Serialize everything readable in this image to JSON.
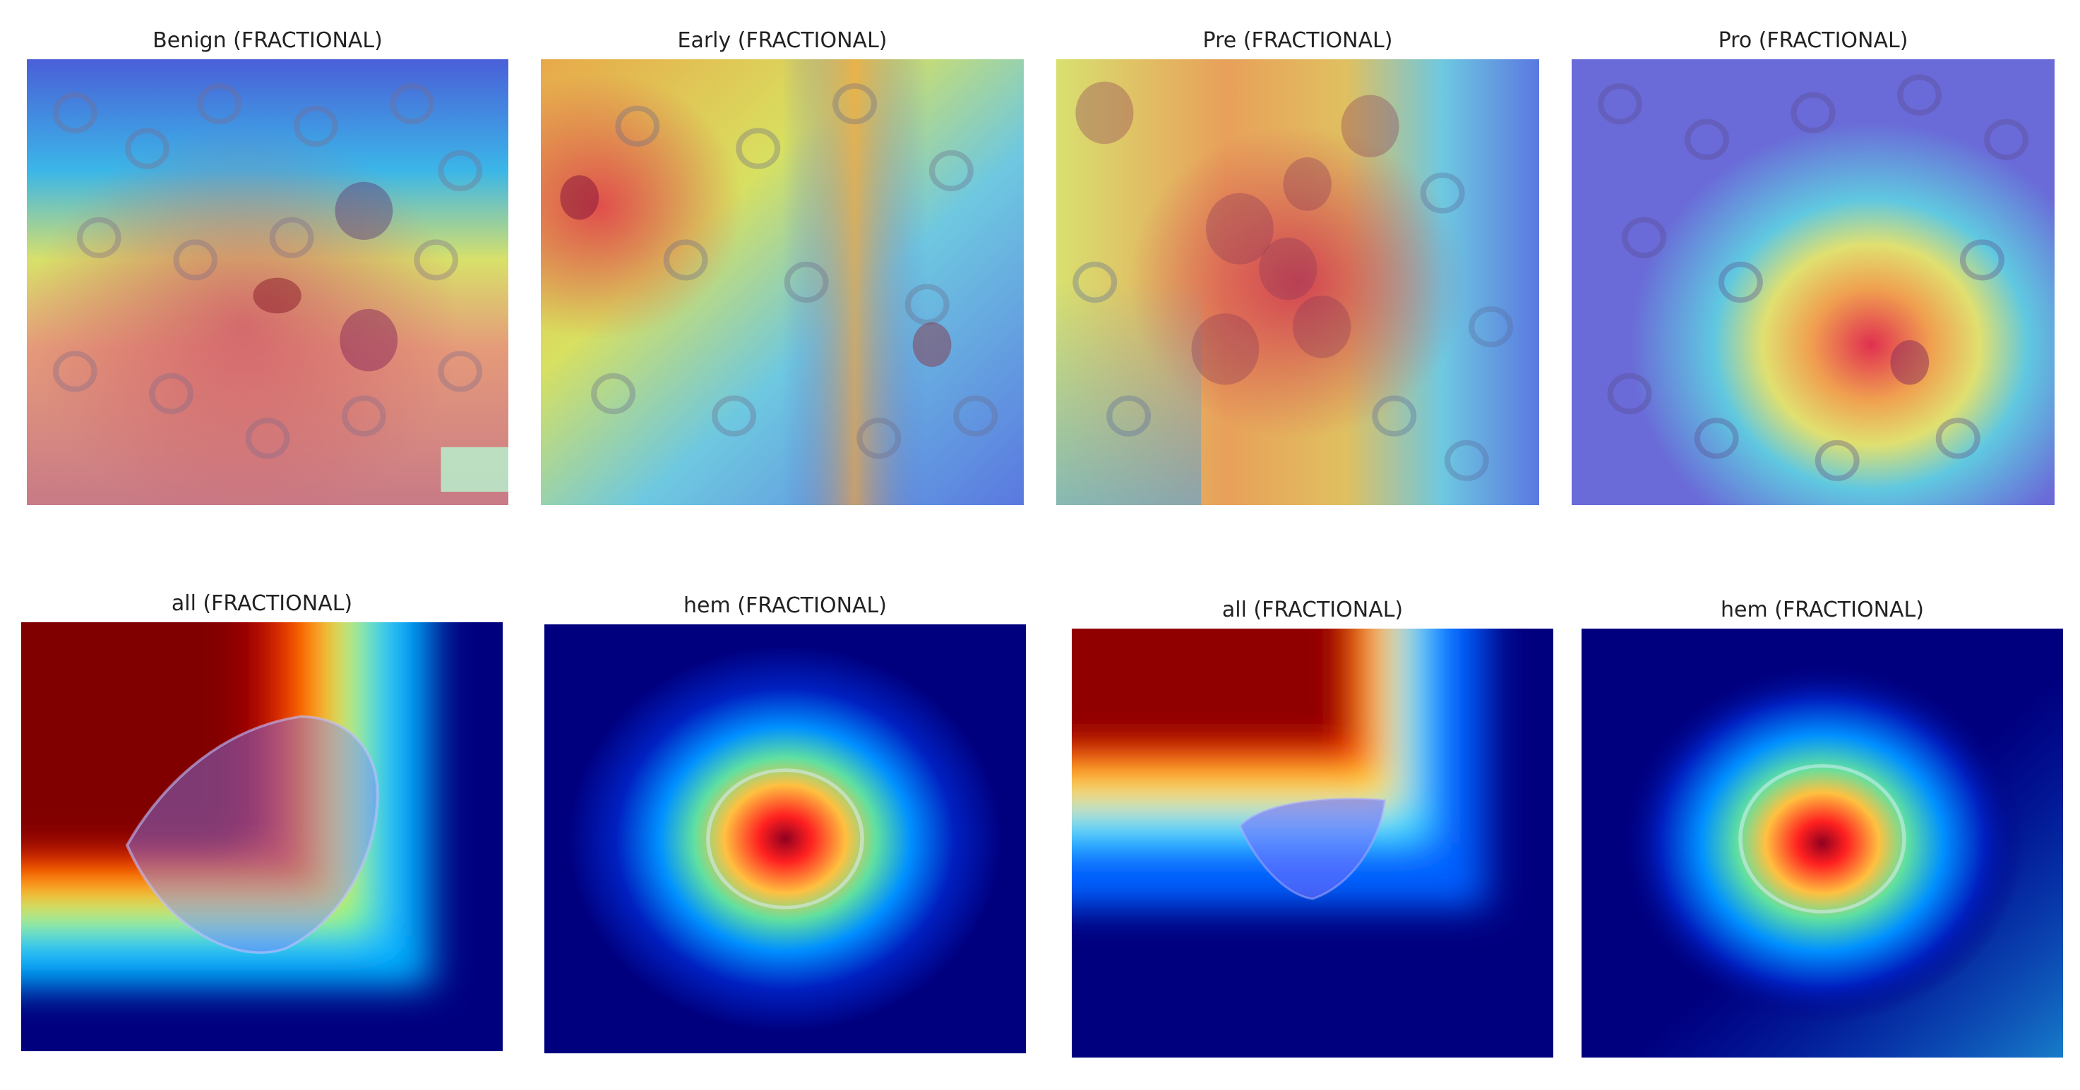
{
  "panels": [
    {
      "title": "Benign (FRACTIONAL)"
    },
    {
      "title": "Early (FRACTIONAL)"
    },
    {
      "title": "Pre (FRACTIONAL)"
    },
    {
      "title": "Pro (FRACTIONAL)"
    },
    {
      "title": "all (FRACTIONAL)"
    },
    {
      "title": "hem (FRACTIONAL)"
    },
    {
      "title": "all (FRACTIONAL)"
    },
    {
      "title": "hem (FRACTIONAL)"
    }
  ],
  "colors": {
    "jet_dark_blue": "#00007f",
    "jet_blue": "#0000ff",
    "jet_cyan": "#00ffff",
    "jet_yellow": "#ffff00",
    "jet_red": "#ff0000",
    "jet_dark_red": "#7f0000"
  }
}
